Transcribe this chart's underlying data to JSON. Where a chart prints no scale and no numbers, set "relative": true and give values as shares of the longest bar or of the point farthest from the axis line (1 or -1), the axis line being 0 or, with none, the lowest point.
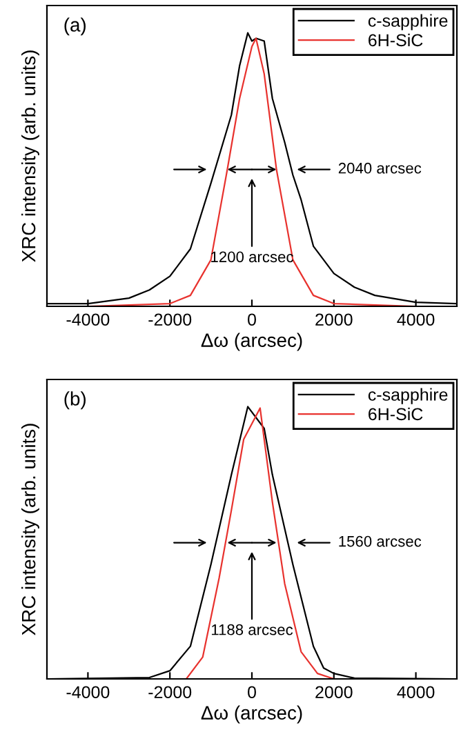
{
  "chart_data": [
    {
      "type": "line",
      "title": "(a)",
      "xlabel": "Δω (arcsec)",
      "ylabel": "XRC intensity (arb. units)",
      "relative": true,
      "xlim": [
        -5000,
        5000
      ],
      "xticks": [
        -4000,
        -2000,
        0,
        2000,
        4000
      ],
      "legend": "top right",
      "grid": false,
      "series": [
        {
          "name": "c-sapphire",
          "color": "#000000",
          "x": [
            -5000,
            -4000,
            -3000,
            -2500,
            -2000,
            -1500,
            -1000,
            -500,
            -300,
            -100,
            0,
            100,
            300,
            500,
            800,
            1000,
            1200,
            1500,
            2000,
            2500,
            3000,
            4000,
            5000
          ],
          "values": [
            0.01,
            0.01,
            0.03,
            0.06,
            0.11,
            0.21,
            0.45,
            0.7,
            0.88,
            1.0,
            0.97,
            0.98,
            0.97,
            0.76,
            0.6,
            0.48,
            0.39,
            0.22,
            0.12,
            0.07,
            0.04,
            0.015,
            0.01
          ]
        },
        {
          "name": "6H-SiC",
          "color": "#e8322e",
          "x": [
            -5000,
            -4000,
            -2000,
            -1500,
            -1000,
            -600,
            -300,
            0,
            100,
            300,
            600,
            1000,
            1500,
            2000,
            4000,
            5000
          ],
          "values": [
            0,
            0,
            0.01,
            0.04,
            0.17,
            0.5,
            0.76,
            0.95,
            0.98,
            0.85,
            0.5,
            0.17,
            0.04,
            0.01,
            0,
            0
          ]
        }
      ],
      "annotations": [
        "2040 arcsec",
        "1200 arcsec"
      ]
    },
    {
      "type": "line",
      "title": "(b)",
      "xlabel": "Δω (arcsec)",
      "ylabel": "XRC intensity (arb. units)",
      "relative": true,
      "xlim": [
        -5000,
        5000
      ],
      "xticks": [
        -4000,
        -2000,
        0,
        2000,
        4000
      ],
      "legend": "top right",
      "grid": false,
      "series": [
        {
          "name": "c-sapphire",
          "color": "#000000",
          "x": [
            -5000,
            -2500,
            -2000,
            -1500,
            -1000,
            -500,
            -100,
            300,
            500,
            1000,
            1500,
            1750,
            2000,
            2500,
            5000
          ],
          "values": [
            0,
            0.005,
            0.03,
            0.12,
            0.42,
            0.75,
            1.0,
            0.92,
            0.75,
            0.42,
            0.12,
            0.04,
            0.02,
            0.003,
            0
          ]
        },
        {
          "name": "6H-SiC",
          "color": "#e8322e",
          "x": [
            -5000,
            -1600,
            -1200,
            -800,
            -500,
            -200,
            200,
            500,
            800,
            1200,
            1600,
            2000,
            5000
          ],
          "values": [
            0,
            0,
            0.08,
            0.37,
            0.62,
            0.88,
            0.995,
            0.65,
            0.35,
            0.1,
            0.02,
            0,
            0
          ]
        }
      ],
      "annotations": [
        "1560 arcsec",
        "1188 arcsec"
      ]
    }
  ]
}
